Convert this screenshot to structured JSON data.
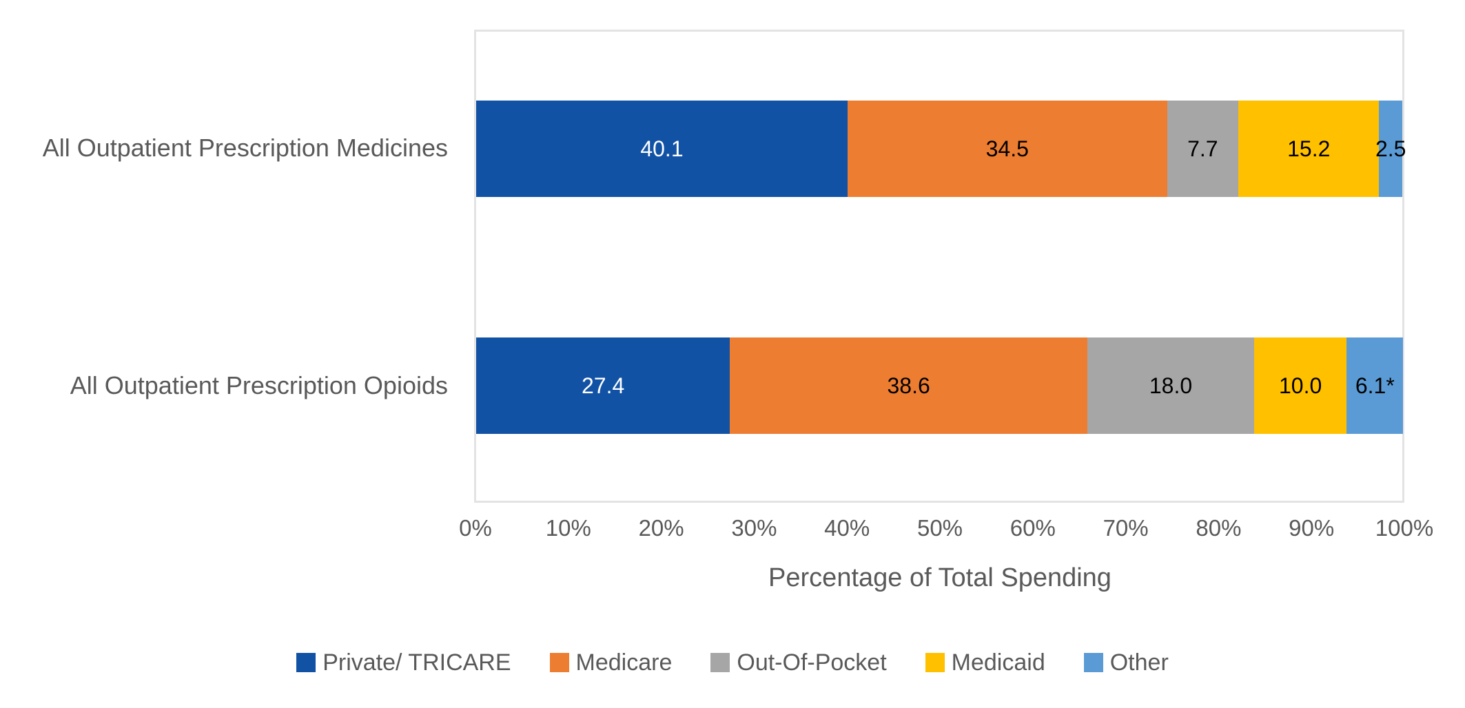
{
  "chart_data": {
    "type": "bar",
    "orientation": "horizontal",
    "stacked": true,
    "title": "",
    "xlabel": "Percentage of Total Spending",
    "xlim": [
      0,
      100
    ],
    "x_ticks": [
      "0%",
      "10%",
      "20%",
      "30%",
      "40%",
      "50%",
      "60%",
      "70%",
      "80%",
      "90%",
      "100%"
    ],
    "grid": false,
    "legend_position": "bottom",
    "categories": [
      "All Outpatient Prescription Medicines",
      "All Outpatient Prescription Opioids"
    ],
    "series": [
      {
        "name": "Private/ TRICARE",
        "color": "#1252A5",
        "label_color": "#FFFFFF",
        "values": [
          40.1,
          27.4
        ],
        "display_labels": [
          "40.1",
          "27.4"
        ]
      },
      {
        "name": "Medicare",
        "color": "#ED7D31",
        "label_color": "#000000",
        "values": [
          34.5,
          38.6
        ],
        "display_labels": [
          "34.5",
          "38.6"
        ]
      },
      {
        "name": "Out-Of-Pocket",
        "color": "#A6A6A6",
        "label_color": "#000000",
        "values": [
          7.7,
          18.0
        ],
        "display_labels": [
          "7.7",
          "18.0"
        ]
      },
      {
        "name": "Medicaid",
        "color": "#FFC000",
        "label_color": "#000000",
        "values": [
          15.2,
          10.0
        ],
        "display_labels": [
          "15.2",
          "10.0"
        ]
      },
      {
        "name": "Other",
        "color": "#5B9BD5",
        "label_color": "#000000",
        "values": [
          2.5,
          6.1
        ],
        "display_labels": [
          "2.5",
          "6.1*"
        ]
      }
    ]
  },
  "colors": {
    "axis_text": "#595959",
    "plot_border": "#E3E3E3",
    "background": "#FFFFFF"
  }
}
